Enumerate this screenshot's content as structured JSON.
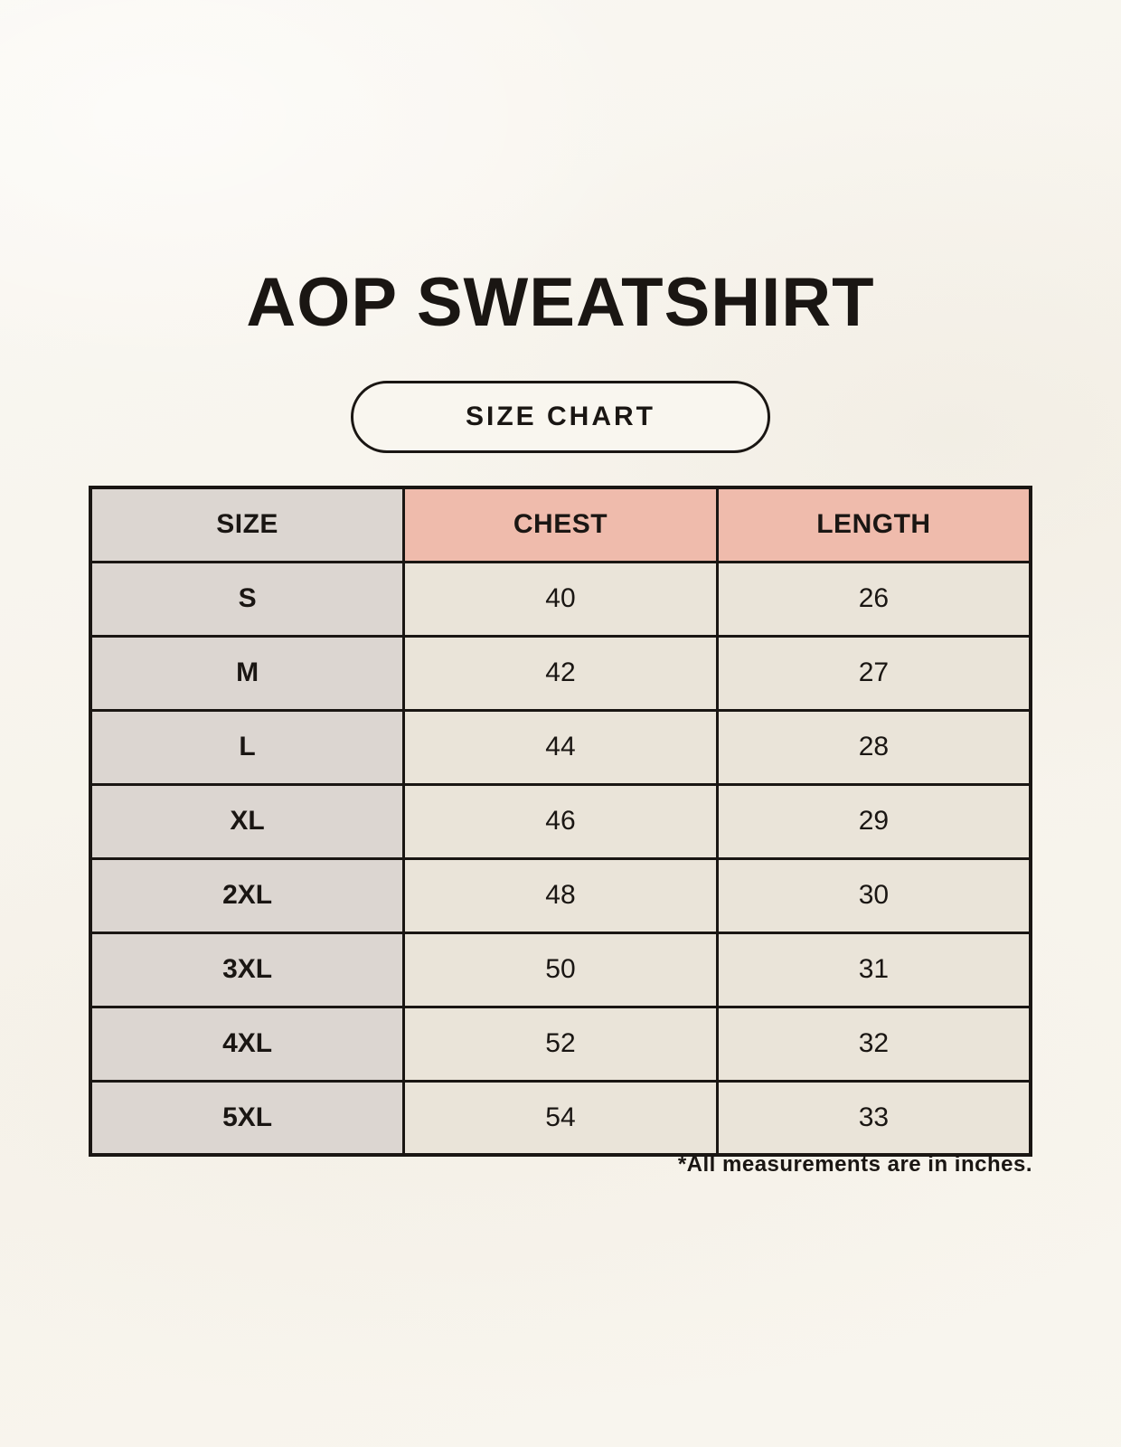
{
  "page": {
    "title": "AOP SWEATSHIRT",
    "size_chart_label": "SIZE CHART",
    "footnote": "*All measurements are in inches."
  },
  "chart_data": {
    "type": "table",
    "title": "AOP SWEATSHIRT",
    "columns": [
      "SIZE",
      "CHEST",
      "LENGTH"
    ],
    "rows": [
      [
        "S",
        "40",
        "26"
      ],
      [
        "M",
        "42",
        "27"
      ],
      [
        "L",
        "44",
        "28"
      ],
      [
        "XL",
        "46",
        "29"
      ],
      [
        "2XL",
        "48",
        "30"
      ],
      [
        "3XL",
        "50",
        "31"
      ],
      [
        "4XL",
        "52",
        "32"
      ],
      [
        "5XL",
        "54",
        "33"
      ]
    ],
    "units_note": "*All measurements are in inches."
  },
  "colors": {
    "background": "#f8f5ee",
    "header_pink": "#efbbac",
    "column_gray": "#dcd6d1",
    "cell_cream": "#eae4d9",
    "border": "#1a1613",
    "text": "#1a1613"
  }
}
